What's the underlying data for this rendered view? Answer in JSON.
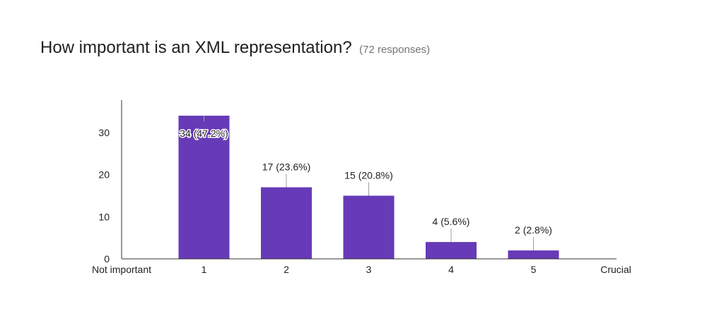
{
  "header": {
    "title": "How important is an XML representation?",
    "responses": "(72 responses)"
  },
  "chart_data": {
    "type": "bar",
    "title": "How important is an XML representation?",
    "subtitle": "(72 responses)",
    "categories": [
      "1",
      "2",
      "3",
      "4",
      "5"
    ],
    "values": [
      34,
      17,
      15,
      4,
      2
    ],
    "value_labels": [
      "34 (47.2%)",
      "17 (23.6%)",
      "15 (20.8%)",
      "4 (5.6%)",
      "2 (2.8%)"
    ],
    "x_end_labels": [
      "Not important",
      "Crucial"
    ],
    "y_ticks": [
      0,
      10,
      20,
      30
    ],
    "ylim": [
      0,
      38
    ],
    "xlabel": "",
    "ylabel": "",
    "grid": false,
    "colors": {
      "bar": "#673AB7",
      "axis": "#333333",
      "leader": "#9E9E9E"
    }
  }
}
